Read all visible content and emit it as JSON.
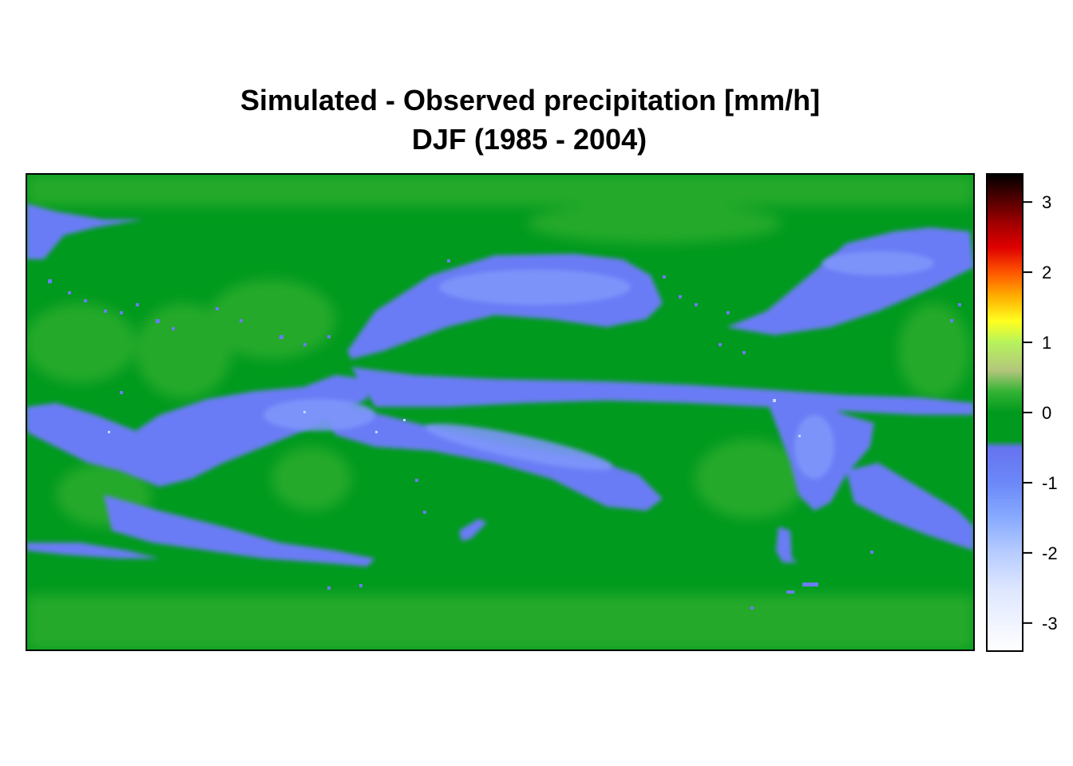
{
  "chart_data": {
    "type": "heatmap",
    "title": "Simulated - Observed precipitation [mm/h]",
    "subtitle": "DJF (1985 - 2004)",
    "colorbar": {
      "range": [
        -3.4,
        3.4
      ],
      "ticks": [
        3,
        2,
        1,
        0,
        -1,
        -2,
        -3
      ],
      "tick_labels": [
        "3",
        "2",
        "1",
        "0",
        "-1",
        "-2",
        "-3"
      ],
      "colors": [
        {
          "value": 3.4,
          "color": "#000000"
        },
        {
          "value": 3.0,
          "color": "#5a0000"
        },
        {
          "value": 2.7,
          "color": "#a00000"
        },
        {
          "value": 2.35,
          "color": "#e00000"
        },
        {
          "value": 2.0,
          "color": "#ff5500"
        },
        {
          "value": 1.65,
          "color": "#ffb000"
        },
        {
          "value": 1.3,
          "color": "#ffff20"
        },
        {
          "value": 1.0,
          "color": "#b6f35c"
        },
        {
          "value": 0.6,
          "color": "#b4c67c"
        },
        {
          "value": 0.3,
          "color": "#34b334"
        },
        {
          "value": 0.0,
          "color": "#009a1e"
        },
        {
          "value": -0.4,
          "color": "#009a1e"
        },
        {
          "value": -0.5,
          "color": "#6673f0"
        },
        {
          "value": -1.0,
          "color": "#6b88f8"
        },
        {
          "value": -1.5,
          "color": "#88aaff"
        },
        {
          "value": -2.0,
          "color": "#b7ccff"
        },
        {
          "value": -2.5,
          "color": "#dde6ff"
        },
        {
          "value": -3.4,
          "color": "#ffffff"
        }
      ]
    },
    "colors": {
      "field_background": "#0ea024",
      "field_light_green": "#2fad2f",
      "negative_anomaly": "#6a7cf5",
      "strong_negative": "#88a4ff"
    },
    "grid": false,
    "legend": "right"
  }
}
